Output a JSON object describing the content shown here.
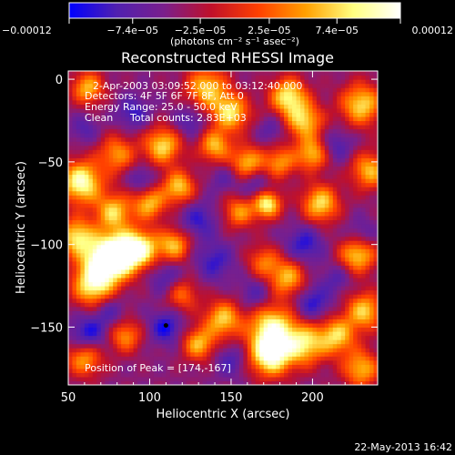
{
  "chart_data": {
    "type": "heatmap",
    "title": "Reconstructed RHESSI Image",
    "xlabel": "Heliocentric X (arcsec)",
    "ylabel": "Heliocentric Y (arcsec)",
    "xlim": [
      50,
      240
    ],
    "ylim": [
      -185,
      5
    ],
    "xticks": [
      50,
      100,
      150,
      200
    ],
    "yticks": [
      0,
      -50,
      -100,
      -150
    ],
    "colorbar": {
      "min": -0.00012,
      "max": 0.00012,
      "tick_values": [
        -0.00012,
        -7.4e-05,
        -2.5e-05,
        2.5e-05,
        7.4e-05,
        0.00012
      ],
      "tick_labels": [
        "−0.00012",
        "−7.4e−05",
        "−2.5e−05",
        "2.5e−05",
        "7.4e−05",
        "0.00012"
      ],
      "unit_label": "(photons cm⁻² s⁻¹ asec⁻²)",
      "colors": [
        "#0000ff",
        "#5020b0",
        "#7a1f8c",
        "#c0102a",
        "#ff4000",
        "#ffa000",
        "#ffff80",
        "#ffffff"
      ]
    },
    "annotations": [
      "2-Apr-2003 03:09:52.000 to 03:12:40.000",
      "Detectors: 4F 5F 6F 7F 8F, Att 0",
      "Energy Range: 25.0 - 50.0 keV",
      "Clean",
      "Total counts: 2.83E+03"
    ],
    "peak": {
      "label": "Position of Peak = [174,-167]",
      "x": 174,
      "y": -167
    },
    "marker": {
      "x": 110,
      "y": -149
    },
    "blobs": [
      {
        "x": 58,
        "y": -62,
        "a": 1.0,
        "s": 9
      },
      {
        "x": 72,
        "y": -110,
        "a": 0.95,
        "s": 10
      },
      {
        "x": 82,
        "y": -105,
        "a": 0.9,
        "s": 9
      },
      {
        "x": 55,
        "y": -95,
        "a": 0.8,
        "s": 8
      },
      {
        "x": 65,
        "y": -125,
        "a": 0.8,
        "s": 9
      },
      {
        "x": 78,
        "y": -80,
        "a": 0.75,
        "s": 8
      },
      {
        "x": 95,
        "y": -102,
        "a": 0.8,
        "s": 8
      },
      {
        "x": 100,
        "y": -75,
        "a": 0.7,
        "s": 7
      },
      {
        "x": 108,
        "y": -40,
        "a": 0.8,
        "s": 8
      },
      {
        "x": 118,
        "y": -65,
        "a": 0.75,
        "s": 7
      },
      {
        "x": 115,
        "y": -100,
        "a": 0.7,
        "s": 7
      },
      {
        "x": 80,
        "y": -45,
        "a": 0.6,
        "s": 8
      },
      {
        "x": 135,
        "y": -5,
        "a": 0.75,
        "s": 9
      },
      {
        "x": 150,
        "y": -20,
        "a": 0.8,
        "s": 8
      },
      {
        "x": 140,
        "y": -40,
        "a": 0.7,
        "s": 7
      },
      {
        "x": 160,
        "y": -50,
        "a": 0.7,
        "s": 7
      },
      {
        "x": 155,
        "y": -80,
        "a": 0.6,
        "s": 7
      },
      {
        "x": 185,
        "y": -10,
        "a": 0.85,
        "s": 8
      },
      {
        "x": 195,
        "y": -25,
        "a": 0.75,
        "s": 8
      },
      {
        "x": 200,
        "y": -45,
        "a": 0.7,
        "s": 7
      },
      {
        "x": 180,
        "y": -50,
        "a": 0.6,
        "s": 7
      },
      {
        "x": 172,
        "y": -75,
        "a": 0.95,
        "s": 6
      },
      {
        "x": 205,
        "y": -75,
        "a": 0.8,
        "s": 8
      },
      {
        "x": 230,
        "y": -15,
        "a": 0.8,
        "s": 9
      },
      {
        "x": 235,
        "y": -55,
        "a": 0.7,
        "s": 8
      },
      {
        "x": 228,
        "y": -105,
        "a": 0.85,
        "s": 8
      },
      {
        "x": 232,
        "y": -140,
        "a": 0.75,
        "s": 8
      },
      {
        "x": 185,
        "y": -120,
        "a": 0.7,
        "s": 8
      },
      {
        "x": 175,
        "y": -150,
        "a": 0.9,
        "s": 10
      },
      {
        "x": 174,
        "y": -167,
        "a": 1.0,
        "s": 9
      },
      {
        "x": 195,
        "y": -160,
        "a": 0.8,
        "s": 9
      },
      {
        "x": 215,
        "y": -155,
        "a": 0.75,
        "s": 8
      },
      {
        "x": 145,
        "y": -145,
        "a": 0.75,
        "s": 8
      },
      {
        "x": 130,
        "y": -160,
        "a": 0.7,
        "s": 7
      },
      {
        "x": 60,
        "y": -168,
        "a": 0.7,
        "s": 8
      },
      {
        "x": 85,
        "y": -155,
        "a": 0.6,
        "s": 7
      },
      {
        "x": 230,
        "y": -175,
        "a": 0.7,
        "s": 8
      },
      {
        "x": 120,
        "y": -130,
        "a": 0.5,
        "s": 7
      },
      {
        "x": 62,
        "y": -5,
        "a": 0.7,
        "s": 7
      },
      {
        "x": 170,
        "y": -110,
        "a": 0.5,
        "s": 7
      }
    ],
    "dips": [
      {
        "x": 62,
        "y": -155,
        "a": 1.0,
        "s": 8
      },
      {
        "x": 110,
        "y": -150,
        "a": 0.9,
        "s": 7
      },
      {
        "x": 75,
        "y": -140,
        "a": 0.6,
        "s": 7
      },
      {
        "x": 195,
        "y": -100,
        "a": 0.8,
        "s": 8
      },
      {
        "x": 230,
        "y": -95,
        "a": 0.7,
        "s": 7
      },
      {
        "x": 110,
        "y": -120,
        "a": 0.6,
        "s": 7
      },
      {
        "x": 130,
        "y": -85,
        "a": 0.7,
        "s": 8
      },
      {
        "x": 140,
        "y": -110,
        "a": 0.7,
        "s": 8
      },
      {
        "x": 165,
        "y": -130,
        "a": 0.6,
        "s": 7
      },
      {
        "x": 90,
        "y": -20,
        "a": 0.7,
        "s": 7
      },
      {
        "x": 125,
        "y": -25,
        "a": 0.6,
        "s": 7
      },
      {
        "x": 165,
        "y": -65,
        "a": 0.6,
        "s": 7
      },
      {
        "x": 215,
        "y": -40,
        "a": 0.6,
        "s": 7
      },
      {
        "x": 200,
        "y": -135,
        "a": 0.8,
        "s": 8
      },
      {
        "x": 175,
        "y": -30,
        "a": 0.5,
        "s": 6
      },
      {
        "x": 95,
        "y": -60,
        "a": 0.6,
        "s": 6
      },
      {
        "x": 150,
        "y": -170,
        "a": 0.6,
        "s": 7
      },
      {
        "x": 60,
        "y": -30,
        "a": 0.5,
        "s": 6
      },
      {
        "x": 215,
        "y": -120,
        "a": 0.5,
        "s": 6
      },
      {
        "x": 145,
        "y": -60,
        "a": 0.4,
        "s": 6
      }
    ]
  },
  "footer": {
    "date": "22-May-2013 16:42"
  }
}
